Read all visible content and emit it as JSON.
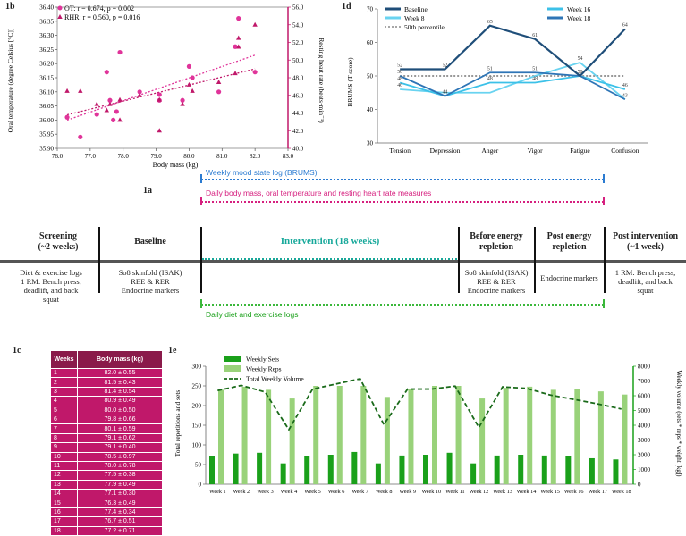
{
  "panel_labels": {
    "b": "1b",
    "d": "1d",
    "a": "1a",
    "c": "1c",
    "e": "1e"
  },
  "colors": {
    "pink": "#e0349a",
    "crimson": "#c0186a",
    "navy": "#1f4e79",
    "blue_mid": "#2e75b6",
    "cyan": "#3cc1e8",
    "light_blue": "#69d3f0",
    "green": "#1aa01a",
    "light_green": "#99d27a",
    "dotted_blue": "#2b7bd1",
    "dotted_pink": "#e0349a",
    "dotted_green": "#3bb83b",
    "teal": "#16a89a"
  },
  "chart_data": [
    {
      "id": "1b",
      "type": "scatter",
      "xlabel": "Body mass (kg)",
      "ylabel": "Oral temperature (degree Celsius [°C])",
      "y2label": "Resting heart rate (beats·min⁻¹)",
      "xlim": [
        76.0,
        83.0
      ],
      "ylim": [
        35.9,
        36.4
      ],
      "y2lim": [
        40.0,
        56.0
      ],
      "xticks": [
        "76.0",
        "77.0",
        "78.0",
        "79.0",
        "80.0",
        "81.0",
        "82.0",
        "83.0"
      ],
      "yticks": [
        "35.90",
        "35.95",
        "36.00",
        "36.05",
        "36.10",
        "36.15",
        "36.20",
        "36.25",
        "36.30",
        "36.35",
        "36.40"
      ],
      "y2ticks": [
        "40.0",
        "42.0",
        "44.0",
        "46.0",
        "48.0",
        "50.0",
        "52.0",
        "54.0",
        "56.0"
      ],
      "legend": [
        "OT: r = 0.674, p = 0.002",
        "RHR: r = 0.560, p = 0.016"
      ],
      "series": [
        {
          "name": "OT",
          "marker": "circle",
          "axis": "left",
          "points": [
            [
              76.3,
              36.01
            ],
            [
              76.7,
              35.94
            ],
            [
              77.2,
              36.02
            ],
            [
              77.5,
              36.17
            ],
            [
              77.6,
              36.07
            ],
            [
              77.7,
              36.0
            ],
            [
              77.8,
              36.03
            ],
            [
              77.9,
              36.24
            ],
            [
              78.5,
              36.1
            ],
            [
              79.1,
              36.09
            ],
            [
              79.1,
              36.07
            ],
            [
              79.8,
              36.07
            ],
            [
              80.0,
              36.19
            ],
            [
              80.1,
              36.15
            ],
            [
              80.9,
              36.1
            ],
            [
              81.4,
              36.26
            ],
            [
              81.5,
              36.36
            ],
            [
              82.0,
              36.17
            ]
          ],
          "trend": [
            [
              76.3,
              36.0
            ],
            [
              82.0,
              36.23
            ]
          ]
        },
        {
          "name": "RHR",
          "marker": "triangle",
          "axis": "right",
          "points": [
            [
              76.3,
              46.5
            ],
            [
              76.7,
              46.5
            ],
            [
              77.2,
              45.0
            ],
            [
              77.5,
              44.3
            ],
            [
              77.6,
              45.0
            ],
            [
              77.9,
              43.2
            ],
            [
              77.9,
              45.5
            ],
            [
              78.5,
              46.0
            ],
            [
              79.1,
              45.5
            ],
            [
              79.1,
              42.0
            ],
            [
              79.8,
              45.0
            ],
            [
              80.0,
              47.2
            ],
            [
              80.1,
              46.5
            ],
            [
              80.9,
              47.5
            ],
            [
              81.4,
              48.5
            ],
            [
              81.5,
              51.5
            ],
            [
              81.5,
              52.5
            ],
            [
              82.0,
              54.0
            ]
          ],
          "trend": [
            [
              76.3,
              43.8
            ],
            [
              82.0,
              49.0
            ]
          ]
        }
      ]
    },
    {
      "id": "1d",
      "type": "line",
      "ylabel": "BRUMS (T-score)",
      "categories": [
        "Tension",
        "Depression",
        "Anger",
        "Vigor",
        "Fatigue",
        "Confusion"
      ],
      "ylim": [
        30,
        70
      ],
      "yticks": [
        "30",
        "40",
        "50",
        "60",
        "70"
      ],
      "legend": [
        "Baseline",
        "Week 8",
        "Week 16",
        "Week 18",
        "50th percentile"
      ],
      "series": [
        {
          "name": "Baseline",
          "values": [
            52,
            52,
            65,
            61,
            50,
            64
          ],
          "labels": [
            "52",
            "52",
            "65",
            "61",
            "",
            "64"
          ]
        },
        {
          "name": "Week 8",
          "values": [
            46,
            45,
            45,
            50,
            54,
            43
          ],
          "labels": [
            "46",
            "",
            "",
            "",
            "54",
            ""
          ]
        },
        {
          "name": "Week 16",
          "values": [
            48,
            44,
            48,
            48,
            50,
            46
          ],
          "labels": [
            "48",
            "44",
            "48",
            "48",
            "",
            "46"
          ]
        },
        {
          "name": "Week 18",
          "values": [
            50,
            44,
            51,
            51,
            50,
            43
          ],
          "labels": [
            "",
            "",
            "51",
            "51",
            "",
            "43"
          ]
        },
        {
          "name": "50th percentile",
          "values": [
            50,
            50,
            50,
            50,
            50,
            50
          ],
          "labels": [
            "50",
            "",
            "",
            "",
            "50",
            ""
          ]
        }
      ]
    },
    {
      "id": "1c",
      "type": "table",
      "headers": [
        "Weeks",
        "Body mass (kg)"
      ],
      "rows": [
        [
          "1",
          "82.0 ± 0.55"
        ],
        [
          "2",
          "81.5 ± 0.43"
        ],
        [
          "3",
          "81.4 ± 0.54"
        ],
        [
          "4",
          "80.9 ± 0.49"
        ],
        [
          "5",
          "80.0 ± 0.50"
        ],
        [
          "6",
          "79.8 ± 0.66"
        ],
        [
          "7",
          "80.1 ± 0.59"
        ],
        [
          "8",
          "79.1 ± 0.62"
        ],
        [
          "9",
          "79.1 ± 0.40"
        ],
        [
          "10",
          "78.5 ± 0.97"
        ],
        [
          "11",
          "78.0 ± 0.78"
        ],
        [
          "12",
          "77.5 ± 0.38"
        ],
        [
          "13",
          "77.9 ± 0.49"
        ],
        [
          "14",
          "77.1 ± 0.30"
        ],
        [
          "15",
          "76.3 ± 0.49"
        ],
        [
          "16",
          "77.4 ± 0.34"
        ],
        [
          "17",
          "76.7 ± 0.51"
        ],
        [
          "18",
          "77.2 ± 0.71"
        ]
      ]
    },
    {
      "id": "1e",
      "type": "bar",
      "ylabel": "Total repetitions and sets",
      "y2label": "Weekly volume (sets * reps * weight [kg])",
      "ylim": [
        0,
        300
      ],
      "y2lim": [
        0,
        8000
      ],
      "yticks": [
        "0",
        "50",
        "100",
        "150",
        "200",
        "250",
        "300"
      ],
      "y2ticks": [
        "0",
        "1000",
        "2000",
        "3000",
        "4000",
        "5000",
        "6000",
        "7000",
        "8000"
      ],
      "categories": [
        "Week 1",
        "Week 2",
        "Week 3",
        "Week 4",
        "Week 5",
        "Week 6",
        "Week 7",
        "Week 8",
        "Week 9",
        "Week 10",
        "Week 11",
        "Week 12",
        "Week 13",
        "Week 14",
        "Week 15",
        "Week 16",
        "Week 17",
        "Week 18"
      ],
      "legend": [
        "Weekly Sets",
        "Weekly Reps",
        "Total Weekly Volume"
      ],
      "series": [
        {
          "name": "Weekly Sets",
          "values": [
            72,
            78,
            80,
            53,
            72,
            75,
            82,
            53,
            73,
            75,
            80,
            53,
            73,
            75,
            73,
            72,
            66,
            63
          ]
        },
        {
          "name": "Weekly Reps",
          "values": [
            240,
            248,
            240,
            218,
            250,
            250,
            250,
            222,
            242,
            250,
            250,
            218,
            245,
            248,
            240,
            242,
            236,
            228
          ]
        },
        {
          "name": "Total Weekly Volume",
          "values": [
            6350,
            6700,
            6250,
            3700,
            6450,
            6800,
            7150,
            4050,
            6450,
            6450,
            6650,
            3850,
            6600,
            6500,
            6050,
            5750,
            5450,
            5100
          ]
        }
      ]
    }
  ],
  "timeline": {
    "top_logs": [
      "Weekly mood state log (BRUMS)",
      "Daily body mass, oral temperature and resting heart rate measures"
    ],
    "bottom_log": "Daily diet and exercise logs",
    "intervention": "Intervention (18 weeks)",
    "phases": [
      {
        "title": "Screening",
        "title2": "(~2 weeks)",
        "details": [
          "Diet & exercise logs",
          "1 RM: Bench press,",
          "deadlift, and back",
          "squat"
        ]
      },
      {
        "title": "Baseline",
        "title2": "",
        "details": [
          "So8 skinfold (ISAK)",
          "REE & RER",
          "Endocrine markers"
        ]
      },
      {
        "title": "Before energy",
        "title2": "repletion",
        "details": [
          "So8 skinfold (ISAK)",
          "REE & RER",
          "Endocrine markers"
        ]
      },
      {
        "title": "Post energy",
        "title2": "repletion",
        "details": [
          "Endocrine markers"
        ]
      },
      {
        "title": "Post intervention",
        "title2": "(~1 week)",
        "details": [
          "1 RM: Bench press,",
          "deadlift, and back",
          "squat"
        ]
      }
    ]
  }
}
